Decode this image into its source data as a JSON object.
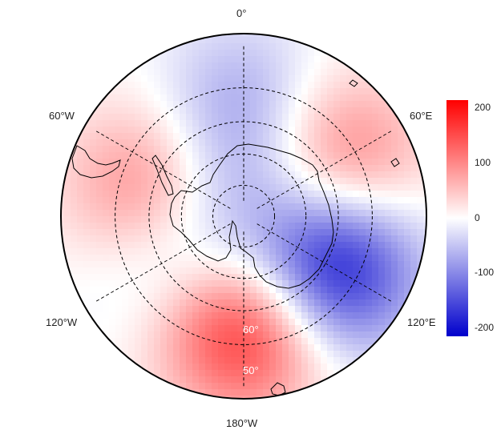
{
  "map": {
    "projection": "south-polar-stereographic",
    "coastline": "Antarctica and southern tips of South America, Africa, Australia, New Zealand",
    "grid": {
      "meridians_deg": [
        0,
        60,
        120,
        180,
        240,
        300
      ],
      "parallels_deg": [
        -80,
        -70,
        -60,
        -50
      ]
    },
    "longitude_labels": {
      "top": "0°",
      "left_upper": "60°W",
      "right_upper": "60°E",
      "left_lower": "120°W",
      "right_lower": "120°E",
      "bottom": "180°W"
    },
    "latitude_labels": {
      "inner": "60°",
      "outer": "50°"
    },
    "field_pattern": [
      {
        "center_lon": -120,
        "center_lat": -58,
        "value": -210
      },
      {
        "center_lon": 180,
        "center_lat": -55,
        "value": 190
      },
      {
        "center_lon": 0,
        "center_lat": -55,
        "value": -70
      },
      {
        "center_lon": 75,
        "center_lat": -60,
        "value": 130
      },
      {
        "center_lon": -60,
        "center_lat": -55,
        "value": 120
      },
      {
        "center_lon": 120,
        "center_lat": -65,
        "value": -80
      },
      {
        "center_lon": 30,
        "center_lat": -78,
        "value": -60
      }
    ]
  },
  "colorbar": {
    "min": -215,
    "max": 215,
    "tick_labels": [
      "200",
      "100",
      "0",
      "-100",
      "-200"
    ],
    "colors": {
      "low": "#0000cc",
      "mid": "#ffffff",
      "high": "#ff0000"
    }
  }
}
